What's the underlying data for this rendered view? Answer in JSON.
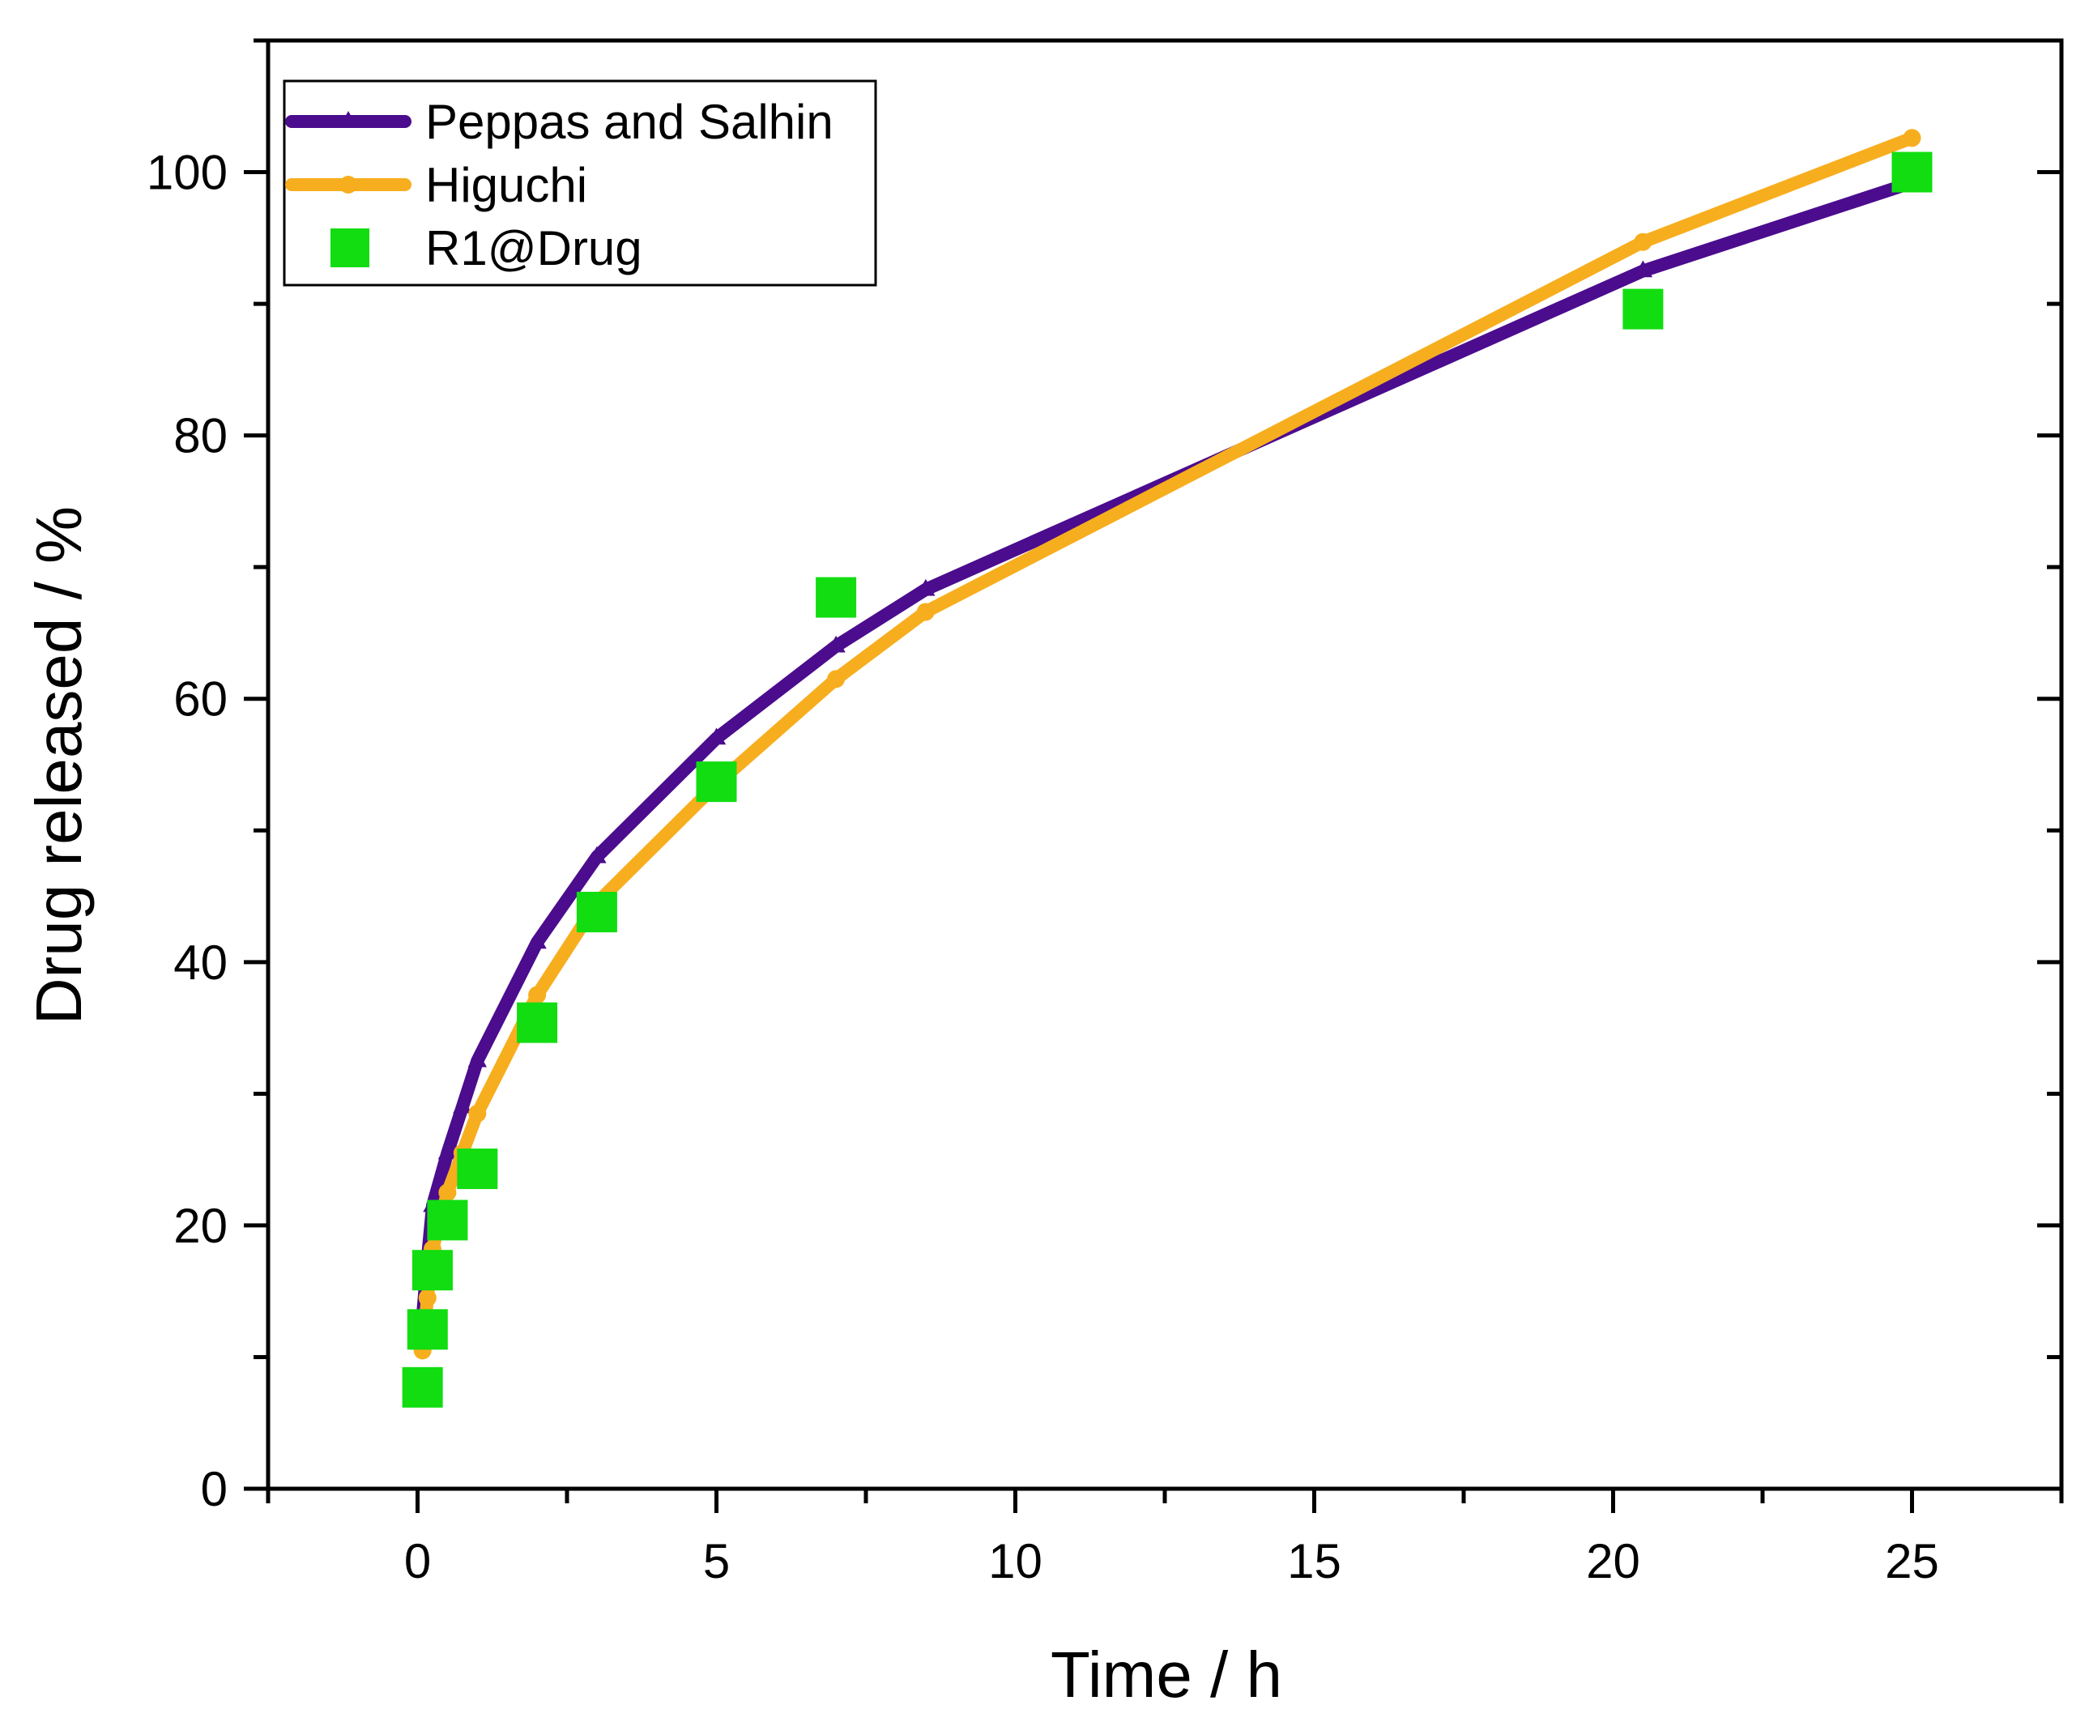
{
  "chart_data": {
    "type": "line",
    "title": "",
    "xlabel": "Time / h",
    "ylabel": "Drug released / %",
    "xlim": [
      -2.5,
      27.5
    ],
    "ylim": [
      0,
      110
    ],
    "xticks": [
      0,
      5,
      10,
      15,
      20,
      25
    ],
    "yticks": [
      0,
      20,
      40,
      60,
      80,
      100
    ],
    "xtick_labels": [
      "0",
      "5",
      "10",
      "15",
      "20",
      "25"
    ],
    "ytick_labels": [
      "0",
      "20",
      "40",
      "60",
      "80",
      "100"
    ],
    "grid": false,
    "legend_position": "top-left",
    "series": [
      {
        "name": "Peppas and Salhin",
        "kind": "line",
        "marker": "triangle",
        "color": "#4B0C8E",
        "x": [
          0.0833,
          0.1667,
          0.25,
          0.5,
          0.75,
          1,
          2,
          3,
          5,
          7,
          8.5,
          20.5,
          25
        ],
        "y": [
          13.0,
          17.5,
          21.5,
          25.5,
          29.0,
          32.5,
          41.5,
          48.0,
          57.0,
          64.0,
          68.3,
          92.5,
          99.2
        ]
      },
      {
        "name": "Higuchi",
        "kind": "line",
        "marker": "circle",
        "color": "#F7AE1E",
        "x": [
          0.0833,
          0.1667,
          0.25,
          0.5,
          0.75,
          1,
          2,
          3,
          5,
          7,
          8.5,
          20.5,
          25
        ],
        "y": [
          10.5,
          14.5,
          18.2,
          22.5,
          25.5,
          28.5,
          37.5,
          44.5,
          53.5,
          61.5,
          66.6,
          94.7,
          102.6
        ]
      },
      {
        "name": "R1@Drug",
        "kind": "scatter",
        "marker": "square",
        "color": "#11DD11",
        "x": [
          0.0833,
          0.1667,
          0.25,
          0.5,
          1,
          2,
          3,
          5,
          7,
          20.5,
          25
        ],
        "y": [
          7.7,
          12.1,
          16.6,
          20.4,
          24.3,
          35.4,
          43.8,
          53.7,
          67.7,
          89.6,
          100.0
        ]
      }
    ]
  }
}
